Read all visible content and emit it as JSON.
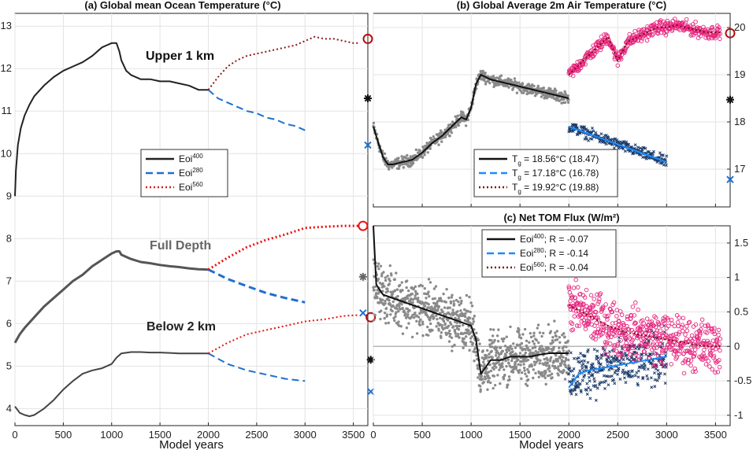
{
  "chart_data": [
    {
      "panel": "a",
      "type": "line",
      "title": "(a) Global mean Ocean Temperature (°C)",
      "xlabel": "Model years",
      "ylabel": "",
      "xlim": [
        0,
        3650
      ],
      "ylim": [
        3.6,
        13.3
      ],
      "xticks": [
        0,
        500,
        1000,
        1500,
        2000,
        2500,
        3000,
        3500
      ],
      "yticks": [
        4,
        5,
        6,
        7,
        8,
        9,
        10,
        11,
        12,
        13
      ],
      "grid": true,
      "legend_position": "center",
      "legend": [
        {
          "base": "Eoi",
          "sup": "400",
          "style": "solid",
          "color": "#222222"
        },
        {
          "base": "Eoi",
          "sup": "280",
          "style": "dash",
          "color": "#1f6fd0"
        },
        {
          "base": "Eoi",
          "sup": "560",
          "style": "dot",
          "color": "#d62020"
        }
      ],
      "annotations": [
        "Upper 1 km",
        "Full Depth",
        "Below 2 km"
      ],
      "series": [
        {
          "name": "Upper 1 km Eoi400",
          "color": "#222222",
          "style": "solid",
          "x": [
            0,
            10,
            30,
            60,
            100,
            150,
            200,
            300,
            400,
            500,
            600,
            700,
            800,
            900,
            950,
            1000,
            1050,
            1080,
            1100,
            1150,
            1200,
            1300,
            1400,
            1500,
            1600,
            1700,
            1800,
            1900,
            2000
          ],
          "y": [
            9.0,
            9.6,
            10.2,
            10.6,
            10.9,
            11.15,
            11.35,
            11.6,
            11.8,
            11.95,
            12.05,
            12.15,
            12.3,
            12.5,
            12.55,
            12.6,
            12.6,
            12.4,
            12.2,
            11.95,
            11.85,
            11.75,
            11.75,
            11.7,
            11.7,
            11.65,
            11.6,
            11.5,
            11.5
          ]
        },
        {
          "name": "Upper 1 km Eoi280",
          "color": "#1f6fd0",
          "style": "dash",
          "x": [
            2000,
            2100,
            2200,
            2300,
            2400,
            2500,
            2600,
            2700,
            2800,
            2900,
            3000
          ],
          "y": [
            11.5,
            11.3,
            11.2,
            11.1,
            11.0,
            10.95,
            10.85,
            10.8,
            10.7,
            10.65,
            10.55
          ]
        },
        {
          "name": "Upper 1 km Eoi560",
          "color": "#8b1a1a",
          "style": "dot",
          "x": [
            2000,
            2100,
            2200,
            2300,
            2400,
            2500,
            2600,
            2700,
            2800,
            2900,
            3000,
            3100,
            3200,
            3300,
            3400,
            3500,
            3550
          ],
          "y": [
            11.5,
            11.8,
            12.05,
            12.2,
            12.3,
            12.35,
            12.4,
            12.45,
            12.5,
            12.55,
            12.65,
            12.75,
            12.7,
            12.7,
            12.65,
            12.6,
            12.6
          ]
        },
        {
          "name": "Full Depth Eoi400",
          "color": "#555555",
          "style": "solid",
          "width": 3,
          "x": [
            0,
            50,
            100,
            200,
            300,
            400,
            500,
            600,
            700,
            800,
            900,
            1000,
            1050,
            1080,
            1100,
            1200,
            1300,
            1400,
            1500,
            1600,
            1700,
            1800,
            1900,
            2000
          ],
          "y": [
            5.55,
            5.75,
            5.9,
            6.15,
            6.4,
            6.6,
            6.8,
            7.0,
            7.15,
            7.35,
            7.5,
            7.65,
            7.7,
            7.7,
            7.62,
            7.52,
            7.45,
            7.42,
            7.38,
            7.35,
            7.33,
            7.3,
            7.28,
            7.27
          ]
        },
        {
          "name": "Full Depth Eoi280",
          "color": "#1f6fd0",
          "style": "dash",
          "width": 3,
          "x": [
            2000,
            2200,
            2400,
            2600,
            2800,
            3000
          ],
          "y": [
            7.27,
            7.05,
            6.88,
            6.72,
            6.6,
            6.5
          ]
        },
        {
          "name": "Full Depth Eoi560",
          "color": "#ee1111",
          "style": "dot",
          "width": 3,
          "x": [
            2000,
            2200,
            2400,
            2600,
            2800,
            3000,
            3200,
            3400,
            3550
          ],
          "y": [
            7.27,
            7.55,
            7.8,
            7.97,
            8.1,
            8.25,
            8.28,
            8.3,
            8.3
          ]
        },
        {
          "name": "Below 2 km Eoi400",
          "color": "#444444",
          "style": "solid",
          "width": 2,
          "x": [
            0,
            50,
            100,
            150,
            200,
            300,
            400,
            500,
            600,
            700,
            800,
            900,
            1000,
            1050,
            1100,
            1200,
            1300,
            1400,
            1500,
            1600,
            1700,
            1800,
            1900,
            2000
          ],
          "y": [
            4.05,
            3.9,
            3.85,
            3.82,
            3.85,
            4.0,
            4.2,
            4.45,
            4.65,
            4.82,
            4.9,
            4.95,
            5.05,
            5.2,
            5.3,
            5.33,
            5.33,
            5.32,
            5.32,
            5.31,
            5.3,
            5.3,
            5.3,
            5.3
          ]
        },
        {
          "name": "Below 2 km Eoi280",
          "color": "#1f6fd0",
          "style": "dash",
          "width": 2,
          "x": [
            2000,
            2200,
            2400,
            2600,
            2800,
            3000
          ],
          "y": [
            5.3,
            5.05,
            4.9,
            4.8,
            4.7,
            4.65
          ]
        },
        {
          "name": "Below 2 km Eoi560",
          "color": "#ee1111",
          "style": "dot",
          "width": 2,
          "x": [
            2000,
            2200,
            2400,
            2600,
            2800,
            3000,
            3200,
            3400,
            3550
          ],
          "y": [
            5.3,
            5.55,
            5.75,
            5.85,
            5.95,
            6.05,
            6.1,
            6.18,
            6.2
          ]
        }
      ],
      "markers": [
        {
          "type": "circle",
          "x": 3650,
          "y": 12.7,
          "color": "#b01010"
        },
        {
          "type": "asterisk",
          "x": 3650,
          "y": 11.3,
          "color": "#111111"
        },
        {
          "type": "cross",
          "x": 3650,
          "y": 10.2,
          "color": "#1f6fd0"
        },
        {
          "type": "circle",
          "x": 3600,
          "y": 8.3,
          "color": "#ee1111"
        },
        {
          "type": "asterisk",
          "x": 3600,
          "y": 7.1,
          "color": "#666666"
        },
        {
          "type": "cross",
          "x": 3600,
          "y": 6.25,
          "color": "#1f6fd0"
        },
        {
          "type": "circle",
          "x": 3680,
          "y": 6.15,
          "color": "#b01010"
        },
        {
          "type": "asterisk",
          "x": 3680,
          "y": 5.15,
          "color": "#111111"
        },
        {
          "type": "cross",
          "x": 3680,
          "y": 4.4,
          "color": "#1f6fd0"
        }
      ]
    },
    {
      "panel": "b",
      "type": "scatter",
      "title": "(b) Global Average 2m Air Temperature (°C)",
      "xlabel": "",
      "ylabel": "",
      "xlim": [
        0,
        3650
      ],
      "ylim": [
        16.2,
        20.3
      ],
      "yaxis_side": "right",
      "xticks": [
        0,
        500,
        1000,
        1500,
        2000,
        2500,
        3000,
        3500
      ],
      "yticks": [
        17,
        18,
        19,
        20
      ],
      "grid": true,
      "legend_position": "bottom-right",
      "legend": [
        {
          "base": "T",
          "sub": "g",
          "rest": " = 18.56°C (18.47)",
          "style": "solid",
          "color": "#111111"
        },
        {
          "base": "T",
          "sub": "g",
          "rest": " = 17.18°C (16.78)",
          "style": "dash",
          "color": "#1a8cff"
        },
        {
          "base": "T",
          "sub": "g",
          "rest": " = 19.92°C (19.88)",
          "style": "dot",
          "color": "#7a1010"
        }
      ],
      "series": [
        {
          "name": "Eoi400 mean",
          "color": "#111111",
          "style": "solid",
          "x": [
            0,
            30,
            60,
            100,
            150,
            200,
            300,
            400,
            500,
            600,
            700,
            800,
            900,
            950,
            1000,
            1050,
            1100,
            1150,
            1200,
            1300,
            1400,
            1500,
            1600,
            1700,
            1800,
            1900,
            2000
          ],
          "y": [
            17.9,
            17.7,
            17.5,
            17.25,
            17.1,
            17.1,
            17.15,
            17.2,
            17.35,
            17.55,
            17.7,
            17.9,
            18.1,
            18.05,
            18.3,
            18.8,
            19.0,
            18.95,
            18.9,
            18.85,
            18.8,
            18.75,
            18.7,
            18.65,
            18.6,
            18.55,
            18.5
          ]
        },
        {
          "name": "Eoi280 mean",
          "color": "#1a8cff",
          "style": "solid",
          "x": [
            2000,
            2200,
            2400,
            2600,
            2800,
            3000
          ],
          "y": [
            17.9,
            17.75,
            17.6,
            17.45,
            17.3,
            17.15
          ]
        },
        {
          "name": "Eoi560 mean",
          "color": "#7a1010",
          "style": "dot",
          "x": [
            2000,
            2100,
            2200,
            2300,
            2400,
            2500,
            2600,
            2700,
            2800,
            2900,
            3000,
            3100,
            3200,
            3300,
            3400,
            3500,
            3550
          ],
          "y": [
            19.0,
            19.2,
            19.4,
            19.6,
            19.8,
            19.3,
            19.7,
            19.8,
            19.9,
            20.0,
            20.0,
            20.05,
            20.0,
            19.95,
            19.9,
            19.9,
            19.9
          ]
        }
      ],
      "markers": [
        {
          "type": "circle",
          "x": 3650,
          "y": 19.88,
          "color": "#b01010"
        },
        {
          "type": "asterisk",
          "x": 3650,
          "y": 18.47,
          "color": "#111111"
        },
        {
          "type": "cross",
          "x": 3650,
          "y": 16.78,
          "color": "#1a6fd0"
        }
      ]
    },
    {
      "panel": "c",
      "type": "scatter",
      "title": "(c) Net TOM Flux (W/m²)",
      "xlabel": "Model years",
      "ylabel": "",
      "xlim": [
        0,
        3650
      ],
      "ylim": [
        -1.15,
        1.75
      ],
      "yaxis_side": "right",
      "xticks": [
        0,
        500,
        1000,
        1500,
        2000,
        2500,
        3000,
        3500
      ],
      "yticks": [
        -1,
        -0.5,
        0,
        0.5,
        1,
        1.5
      ],
      "grid": true,
      "legend_position": "top-left",
      "legend": [
        {
          "base": "Eoi",
          "sup": "400",
          "rest": "; R = -0.07",
          "style": "solid",
          "color": "#111111"
        },
        {
          "base": "Eoi",
          "sup": "280",
          "rest": "; R = -0.14",
          "style": "dash",
          "color": "#1a8cff"
        },
        {
          "base": "Eoi",
          "sup": "560",
          "rest": "; R = -0.04",
          "style": "dot",
          "color": "#7a1010"
        }
      ],
      "series": [
        {
          "name": "Eoi400 mean",
          "color": "#111111",
          "style": "solid",
          "x": [
            0,
            30,
            50,
            100,
            200,
            300,
            400,
            500,
            600,
            700,
            800,
            900,
            1000,
            1050,
            1080,
            1100,
            1150,
            1200,
            1300,
            1400,
            1500,
            1600,
            1700,
            1800,
            1900,
            2000
          ],
          "y": [
            1.75,
            0.9,
            0.85,
            0.75,
            0.7,
            0.65,
            0.6,
            0.55,
            0.5,
            0.45,
            0.4,
            0.35,
            0.3,
            0.1,
            -0.2,
            -0.4,
            -0.3,
            -0.2,
            -0.2,
            -0.15,
            -0.15,
            -0.15,
            -0.12,
            -0.1,
            -0.1,
            -0.1
          ]
        },
        {
          "name": "Eoi280 mean",
          "color": "#1a8cff",
          "style": "solid",
          "x": [
            2000,
            2100,
            2200,
            2400,
            2600,
            2800,
            3000
          ],
          "y": [
            -0.6,
            -0.4,
            -0.35,
            -0.3,
            -0.25,
            -0.2,
            -0.15
          ]
        },
        {
          "name": "Eoi560 mean",
          "color": "#7a1010",
          "style": "dot",
          "x": [
            2000,
            2200,
            2400,
            2600,
            2800,
            3000,
            3200,
            3400,
            3550
          ],
          "y": [
            0.6,
            0.45,
            0.3,
            0.2,
            0.15,
            0.1,
            0.05,
            0.0,
            0.0
          ]
        }
      ]
    }
  ]
}
